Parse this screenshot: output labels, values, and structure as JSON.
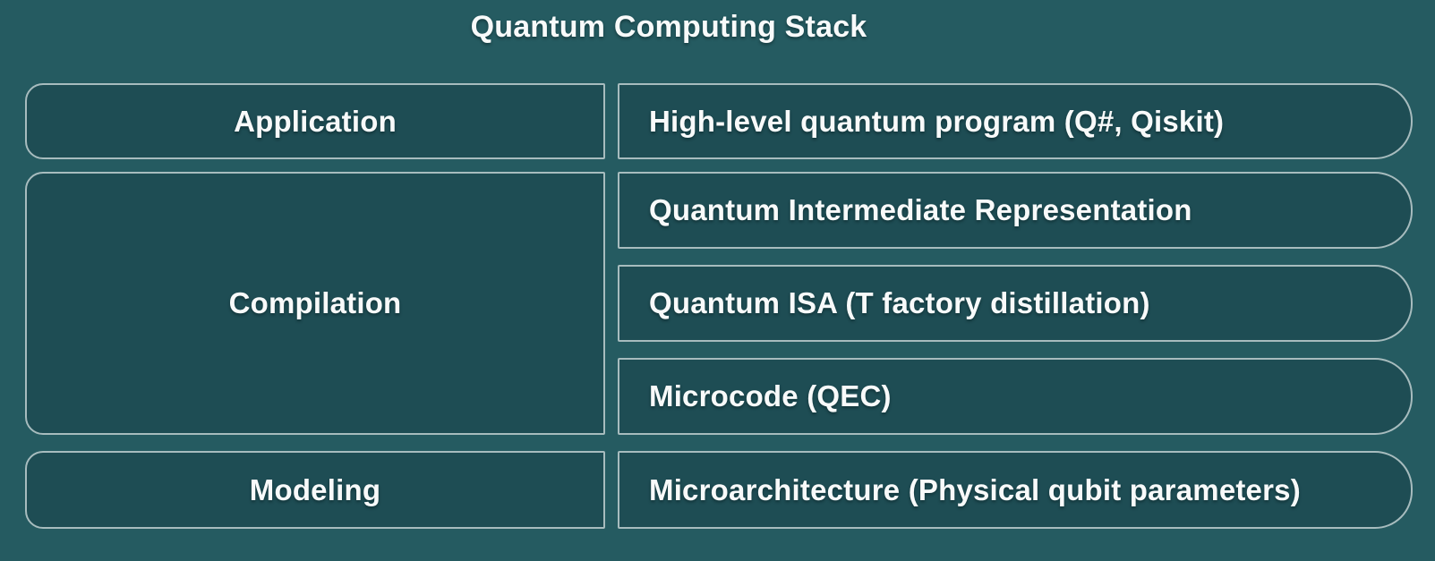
{
  "title": "Quantum Computing Stack",
  "colors": {
    "background": "#255b61",
    "box_fill": "#1e4d54",
    "box_border": "#a7bcbe",
    "text": "#f8fafa"
  },
  "left_column": [
    {
      "label": "Application"
    },
    {
      "label": "Compilation"
    },
    {
      "label": "Modeling"
    }
  ],
  "right_column": [
    {
      "label": "High-level quantum program (Q#, Qiskit)"
    },
    {
      "label": "Quantum Intermediate Representation"
    },
    {
      "label": "Quantum ISA (T factory distillation)"
    },
    {
      "label": "Microcode (QEC)"
    },
    {
      "label": "Microarchitecture (Physical qubit parameters)"
    }
  ]
}
